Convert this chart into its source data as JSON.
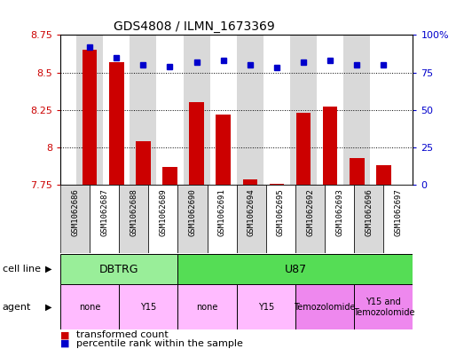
{
  "title": "GDS4808 / ILMN_1673369",
  "samples": [
    "GSM1062686",
    "GSM1062687",
    "GSM1062688",
    "GSM1062689",
    "GSM1062690",
    "GSM1062691",
    "GSM1062694",
    "GSM1062695",
    "GSM1062692",
    "GSM1062693",
    "GSM1062696",
    "GSM1062697"
  ],
  "transformed_count": [
    8.65,
    8.57,
    8.04,
    7.87,
    8.3,
    8.22,
    7.79,
    7.76,
    8.23,
    8.27,
    7.93,
    7.88
  ],
  "percentile_rank": [
    92,
    85,
    80,
    79,
    82,
    83,
    80,
    78,
    82,
    83,
    80,
    80
  ],
  "ylim_left": [
    7.75,
    8.75
  ],
  "ylim_right": [
    0,
    100
  ],
  "yticks_left": [
    7.75,
    8.0,
    8.25,
    8.5,
    8.75
  ],
  "yticks_right": [
    0,
    25,
    50,
    75,
    100
  ],
  "ytick_labels_left": [
    "7.75",
    "8",
    "8.25",
    "8.5",
    "8.75"
  ],
  "ytick_labels_right": [
    "0",
    "25",
    "50",
    "75",
    "100%"
  ],
  "bar_color": "#cc0000",
  "dot_color": "#0000cc",
  "bar_bg_colors": [
    "#d9d9d9",
    "#ffffff"
  ],
  "cell_line_groups": [
    {
      "label": "DBTRG",
      "start": 0,
      "end": 3,
      "color": "#99ee99"
    },
    {
      "label": "U87",
      "start": 4,
      "end": 11,
      "color": "#55dd55"
    }
  ],
  "agent_groups": [
    {
      "label": "none",
      "start": 0,
      "end": 1,
      "color": "#ffbbff"
    },
    {
      "label": "Y15",
      "start": 2,
      "end": 3,
      "color": "#ffbbff"
    },
    {
      "label": "none",
      "start": 4,
      "end": 5,
      "color": "#ffbbff"
    },
    {
      "label": "Y15",
      "start": 6,
      "end": 7,
      "color": "#ffbbff"
    },
    {
      "label": "Temozolomide",
      "start": 8,
      "end": 9,
      "color": "#ee88ee"
    },
    {
      "label": "Y15 and\nTemozolomide",
      "start": 10,
      "end": 11,
      "color": "#ee88ee"
    }
  ],
  "legend_items": [
    {
      "label": "transformed count",
      "color": "#cc0000"
    },
    {
      "label": "percentile rank within the sample",
      "color": "#0000cc"
    }
  ],
  "background_color": "#ffffff"
}
